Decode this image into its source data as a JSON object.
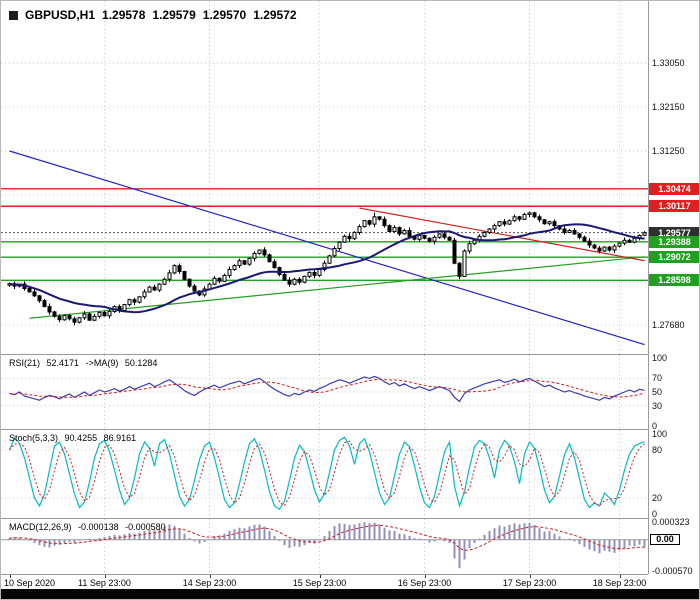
{
  "window": {
    "title_symbol": "GBPUSD,H1",
    "quote": {
      "open": "1.29578",
      "high": "1.29579",
      "low": "1.29570",
      "close": "1.29572"
    }
  },
  "colors": {
    "background": "#ffffff",
    "grid": "#c9c9c9",
    "candle_up": "#ffffff",
    "candle_down": "#000000",
    "candle_border": "#000000",
    "ma": "#191970",
    "resistance": "#e02020",
    "support": "#1fa01f",
    "price_badge_bg": "#2f2f2f",
    "trend_blue": "#2424c8",
    "trend_green": "#22a022",
    "trend_red": "#d02020",
    "rsi_line": "#3c3cb4",
    "signal_red": "#cc2222",
    "stoch_line": "#00bcc4",
    "macd_hist": "#9090bc",
    "separator": "#9a9a9a"
  },
  "indicators": {
    "rsi": {
      "name": "RSI(21)",
      "value": "52.4171",
      "ma_name": "->MA(9)",
      "ma_value": "50.1284",
      "axis_labels": [
        100,
        70,
        50,
        30,
        0
      ],
      "grid_levels": [
        70,
        50,
        30
      ],
      "ma_period": 9
    },
    "stoch": {
      "name": "Stoch(5,3,3)",
      "value": "90.4255",
      "signal_value": "86.9161",
      "axis_labels": [
        100,
        80,
        20,
        0
      ],
      "grid_levels": [
        80,
        20
      ],
      "signal_period": 3
    },
    "macd": {
      "name": "MACD(12,26,9)",
      "value": "-0.000138",
      "signal_value": "-0.000580",
      "axis_labels": [
        "0.000323",
        "0.00",
        "-0.000570"
      ],
      "range": {
        "max": 0.000323,
        "min": -0.00057
      },
      "signal_period": 9
    }
  },
  "time_axis": {
    "labels": [
      {
        "text": "10 Sep 2020",
        "index": 0
      },
      {
        "text": "11 Sep 23:00",
        "index": 19
      },
      {
        "text": "14 Sep 23:00",
        "index": 40
      },
      {
        "text": "15 Sep 23:00",
        "index": 62
      },
      {
        "text": "16 Sep 23:00",
        "index": 83
      },
      {
        "text": "17 Sep 23:00",
        "index": 104
      },
      {
        "text": "18 Sep 23:00",
        "index": 122
      }
    ]
  },
  "chart_data": {
    "type": "candlestick",
    "symbol": "GBPUSD",
    "timeframe": "H1",
    "title": "GBPUSD,H1 1.29578 1.29579 1.29570 1.29572",
    "main": {
      "price_axis": {
        "min": 1.2719,
        "max": 1.3408,
        "plain_labels": [
          1.3305,
          1.3215,
          1.3125,
          1.2768
        ],
        "grid_prices": [
          1.3305,
          1.3215,
          1.3125,
          1.3035,
          1.2945,
          1.2855,
          1.2768
        ]
      },
      "closes": [
        1.2853,
        1.2848,
        1.2852,
        1.2843,
        1.2836,
        1.2828,
        1.2818,
        1.2806,
        1.2795,
        1.2786,
        1.2779,
        1.2788,
        1.2781,
        1.2774,
        1.2783,
        1.2791,
        1.2778,
        1.2786,
        1.2794,
        1.2787,
        1.2796,
        1.2806,
        1.2798,
        1.281,
        1.282,
        1.2815,
        1.2826,
        1.2836,
        1.2846,
        1.284,
        1.2852,
        1.2862,
        1.2875,
        1.289,
        1.2878,
        1.2862,
        1.2848,
        1.2838,
        1.283,
        1.2842,
        1.2852,
        1.2864,
        1.2858,
        1.287,
        1.2882,
        1.289,
        1.29,
        1.2893,
        1.2905,
        1.2915,
        1.2922,
        1.2912,
        1.2898,
        1.2886,
        1.2872,
        1.286,
        1.2852,
        1.2862,
        1.2856,
        1.2868,
        1.2876,
        1.287,
        1.2882,
        1.2895,
        1.291,
        1.2925,
        1.2938,
        1.295,
        1.2945,
        1.2958,
        1.297,
        1.2982,
        1.2975,
        1.299,
        1.2985,
        1.2972,
        1.296,
        1.2968,
        1.2955,
        1.2962,
        1.295,
        1.2944,
        1.2952,
        1.2946,
        1.294,
        1.2948,
        1.2955,
        1.2948,
        1.2942,
        1.2895,
        1.2868,
        1.292,
        1.2935,
        1.2942,
        1.295,
        1.2958,
        1.2965,
        1.2972,
        1.298,
        1.2975,
        1.2982,
        1.299,
        1.2985,
        1.2995,
        1.2998,
        1.299,
        1.2984,
        1.2976,
        1.298,
        1.2972,
        1.2965,
        1.2958,
        1.2962,
        1.2955,
        1.2948,
        1.294,
        1.2932,
        1.2926,
        1.292,
        1.2928,
        1.2922,
        1.293,
        1.2936,
        1.2942,
        1.2938,
        1.2946,
        1.2952,
        1.29572
      ],
      "opens_rule": "each bar opens at the previous bar close",
      "wick_pattern": [
        3,
        6,
        2,
        8,
        4,
        7,
        3,
        5,
        9,
        4,
        6,
        2
      ],
      "wick_unit": 7e-05,
      "wick_overrides": {
        "73": {
          "high": 1.2999
        },
        "90": {
          "low": 1.2862
        },
        "104": {
          "high": 1.3001
        }
      },
      "ma_period": 20,
      "levels": {
        "resistance": [
          1.30474,
          1.30117
        ],
        "support": [
          1.29388,
          1.29072,
          1.28598
        ],
        "current_price": 1.29577
      },
      "trendlines": [
        {
          "color_key": "blue",
          "from": {
            "index": 0,
            "price": 1.3125
          },
          "to": {
            "index": 127,
            "price": 1.2728
          }
        },
        {
          "color_key": "green",
          "from": {
            "index": 4,
            "price": 1.2782
          },
          "to": {
            "index": 127,
            "price": 1.2908
          }
        },
        {
          "color_key": "red",
          "from": {
            "index": 70,
            "price": 1.3008
          },
          "to": {
            "index": 127,
            "price": 1.29
          }
        }
      ]
    },
    "rsi_values": [
      48,
      46,
      50,
      44,
      42,
      40,
      38,
      42,
      45,
      43,
      40,
      44,
      47,
      42,
      46,
      50,
      45,
      49,
      53,
      50,
      52,
      55,
      51,
      54,
      58,
      54,
      57,
      60,
      63,
      58,
      61,
      65,
      68,
      63,
      58,
      52,
      48,
      45,
      50,
      54,
      57,
      60,
      56,
      59,
      62,
      64,
      66,
      62,
      65,
      68,
      70,
      65,
      59,
      54,
      50,
      46,
      44,
      48,
      46,
      50,
      53,
      51,
      55,
      58,
      62,
      65,
      68,
      66,
      63,
      66,
      69,
      72,
      70,
      73,
      70,
      65,
      61,
      64,
      59,
      62,
      58,
      55,
      58,
      55,
      52,
      55,
      58,
      55,
      52,
      42,
      36,
      48,
      53,
      56,
      59,
      62,
      64,
      66,
      68,
      64,
      66,
      69,
      65,
      68,
      70,
      66,
      62,
      58,
      60,
      56,
      53,
      50,
      52,
      49,
      47,
      44,
      42,
      40,
      38,
      42,
      40,
      44,
      47,
      50,
      53,
      50,
      54,
      52.42
    ],
    "stoch_values": [
      80,
      95,
      88,
      70,
      45,
      20,
      10,
      25,
      55,
      85,
      90,
      75,
      50,
      25,
      8,
      15,
      40,
      70,
      88,
      92,
      78,
      55,
      30,
      12,
      20,
      45,
      75,
      90,
      82,
      60,
      88,
      93,
      75,
      48,
      22,
      10,
      18,
      42,
      68,
      85,
      90,
      70,
      45,
      18,
      8,
      14,
      38,
      65,
      88,
      94,
      80,
      55,
      28,
      10,
      6,
      16,
      42,
      70,
      86,
      78,
      55,
      30,
      15,
      25,
      52,
      80,
      92,
      96,
      85,
      62,
      88,
      94,
      78,
      52,
      26,
      12,
      20,
      48,
      75,
      90,
      84,
      60,
      34,
      14,
      8,
      22,
      50,
      78,
      90,
      35,
      10,
      28,
      58,
      84,
      92,
      88,
      70,
      45,
      80,
      92,
      85,
      65,
      38,
      75,
      90,
      82,
      58,
      30,
      14,
      22,
      48,
      74,
      88,
      70,
      44,
      18,
      8,
      14,
      10,
      26,
      20,
      12,
      30,
      55,
      75,
      85,
      88,
      90.43
    ],
    "macd_values_e5": [
      3,
      5,
      4,
      1,
      -2,
      -6,
      -10,
      -13,
      -14,
      -11,
      -9,
      -6,
      -4,
      -5,
      -2,
      0,
      2,
      1,
      3,
      5,
      7,
      9,
      8,
      10,
      12,
      11,
      13,
      16,
      18,
      17,
      20,
      24,
      28,
      25,
      19,
      11,
      3,
      -3,
      -7,
      -4,
      1,
      7,
      8,
      11,
      16,
      19,
      22,
      21,
      24,
      27,
      28,
      24,
      16,
      7,
      -2,
      -10,
      -15,
      -12,
      -13,
      -10,
      -6,
      -7,
      -1,
      7,
      16,
      25,
      30,
      29,
      27,
      28,
      30,
      32,
      30,
      31,
      28,
      22,
      17,
      16,
      11,
      10,
      7,
      3,
      2,
      -1,
      -5,
      -3,
      -1,
      -3,
      -6,
      -34,
      -52,
      -36,
      -15,
      -6,
      2,
      9,
      16,
      21,
      26,
      24,
      27,
      30,
      28,
      30,
      31,
      27,
      21,
      15,
      16,
      11,
      6,
      1,
      2,
      -3,
      -8,
      -13,
      -18,
      -21,
      -25,
      -20,
      -22,
      -24,
      -19,
      -16,
      -11,
      -12,
      -9,
      -13.8
    ],
    "macd_unit": 1e-05
  }
}
